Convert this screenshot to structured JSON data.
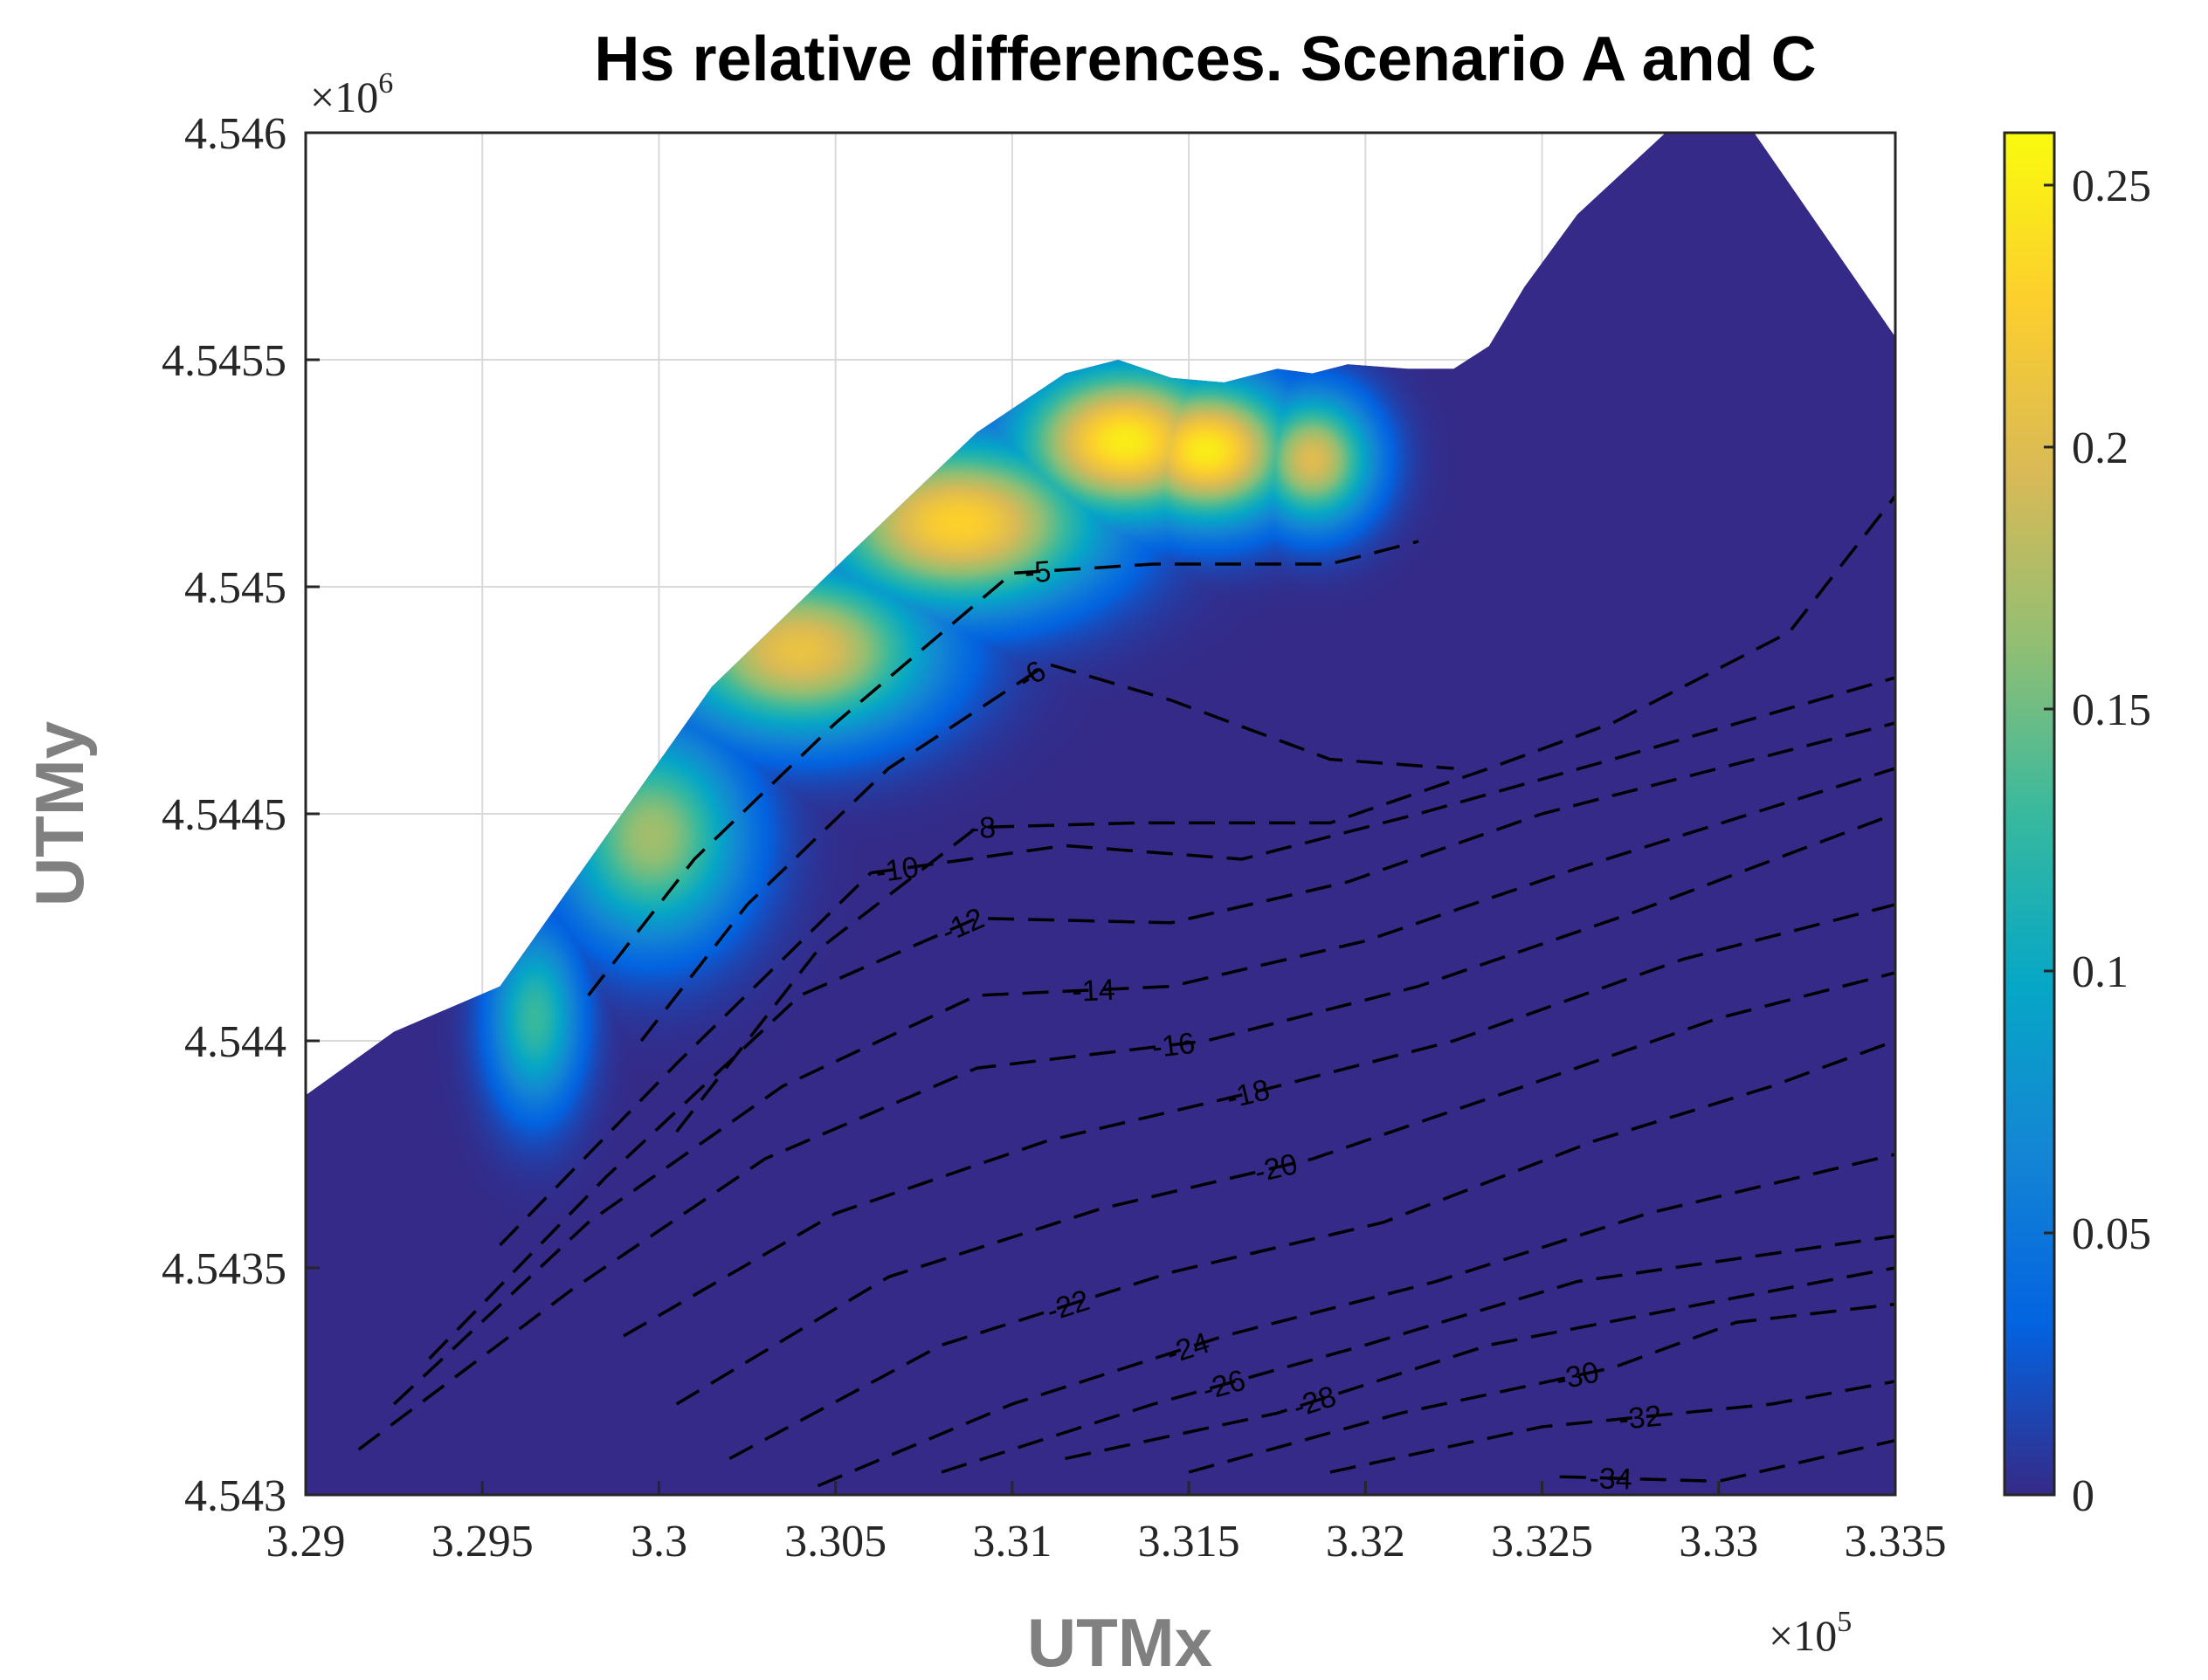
{
  "chart_data": {
    "type": "heatmap",
    "title": "Hs relative differences. Scenario A and C",
    "xlabel": "UTMx",
    "ylabel": "UTMy",
    "x_multiplier": "×10",
    "x_exponent": "5",
    "y_multiplier": "×10",
    "y_exponent": "6",
    "xlim": [
      3.29,
      3.335
    ],
    "ylim": [
      4.543,
      4.546
    ],
    "xticks": [
      "3.29",
      "3.295",
      "3.3",
      "3.305",
      "3.31",
      "3.315",
      "3.32",
      "3.325",
      "3.33",
      "3.335"
    ],
    "yticks": [
      "4.543",
      "4.5435",
      "4.544",
      "4.5445",
      "4.545",
      "4.5455",
      "4.546"
    ],
    "grid": true,
    "colormap": "parula",
    "colormap_colors": [
      "#352a87",
      "#0363e1",
      "#1485d4",
      "#06a7c6",
      "#38b99e",
      "#92bf73",
      "#d9ba56",
      "#fcce2e",
      "#f9fb0e"
    ],
    "clim": [
      0,
      0.26
    ],
    "colorbar_ticks": [
      "0",
      "0.05",
      "0.1",
      "0.15",
      "0.2",
      "0.25"
    ],
    "colorbar_location": "right",
    "coast": [
      [
        3.29,
        4.54388
      ],
      [
        3.2925,
        4.54402
      ],
      [
        3.2955,
        4.54412
      ],
      [
        3.2985,
        4.54445
      ],
      [
        3.3015,
        4.54478
      ],
      [
        3.3055,
        4.54508
      ],
      [
        3.309,
        4.54534
      ],
      [
        3.3115,
        4.54547
      ],
      [
        3.313,
        4.5455
      ],
      [
        3.3145,
        4.54546
      ],
      [
        3.316,
        4.54545
      ],
      [
        3.3175,
        4.54548
      ],
      [
        3.3185,
        4.54547
      ],
      [
        3.3195,
        4.54549
      ],
      [
        3.3212,
        4.54548
      ],
      [
        3.3225,
        4.54548
      ],
      [
        3.3235,
        4.54553
      ],
      [
        3.3245,
        4.54566
      ],
      [
        3.326,
        4.54582
      ],
      [
        3.3285,
        4.546
      ],
      [
        3.331,
        4.546
      ],
      [
        3.335,
        4.54555
      ]
    ],
    "hotspots": [
      {
        "x": 3.3132,
        "y": 4.54532,
        "peak": 0.25,
        "sx": 0.0022,
        "sy": 0.00012
      },
      {
        "x": 3.3155,
        "y": 4.5453,
        "peak": 0.25,
        "sx": 0.0018,
        "sy": 0.00011
      },
      {
        "x": 3.3085,
        "y": 4.54514,
        "peak": 0.23,
        "sx": 0.0028,
        "sy": 0.00013
      },
      {
        "x": 3.3185,
        "y": 4.54528,
        "peak": 0.2,
        "sx": 0.0012,
        "sy": 0.0001
      },
      {
        "x": 3.304,
        "y": 4.54486,
        "peak": 0.21,
        "sx": 0.0026,
        "sy": 0.00013
      },
      {
        "x": 3.2998,
        "y": 4.54445,
        "peak": 0.17,
        "sx": 0.0018,
        "sy": 0.00016
      },
      {
        "x": 3.2965,
        "y": 4.54405,
        "peak": 0.13,
        "sx": 0.0009,
        "sy": 0.00014
      }
    ],
    "contours": [
      {
        "label": "-5",
        "points": [
          [
            3.298,
            4.5441
          ],
          [
            3.301,
            4.5444
          ],
          [
            3.305,
            4.5447
          ],
          [
            3.31,
            4.54503
          ],
          [
            3.314,
            4.54505
          ],
          [
            3.319,
            4.54505
          ],
          [
            3.3215,
            4.5451
          ]
        ],
        "label_at": 0.62
      },
      {
        "label": "-6",
        "points": [
          [
            3.2995,
            4.544
          ],
          [
            3.3025,
            4.5443
          ],
          [
            3.3065,
            4.5446
          ],
          [
            3.311,
            4.54483
          ],
          [
            3.3145,
            4.54475
          ],
          [
            3.319,
            4.54462
          ],
          [
            3.3225,
            4.5446
          ]
        ],
        "label_at": 0.55
      },
      {
        "label": "-8",
        "points": [
          [
            3.3005,
            4.5438
          ],
          [
            3.3045,
            4.5442
          ],
          [
            3.309,
            4.54447
          ],
          [
            3.3135,
            4.54448
          ],
          [
            3.319,
            4.54448
          ],
          [
            3.3235,
            4.5446
          ],
          [
            3.327,
            4.5447
          ],
          [
            3.332,
            4.5449
          ],
          [
            3.335,
            4.5452
          ]
        ],
        "label_at": 0.3
      },
      {
        "label": "-10",
        "points": [
          [
            3.2955,
            4.54355
          ],
          [
            3.3005,
            4.54395
          ],
          [
            3.306,
            4.54437
          ],
          [
            3.3115,
            4.54443
          ],
          [
            3.3165,
            4.5444
          ],
          [
            3.3215,
            4.5445
          ],
          [
            3.327,
            4.54462
          ],
          [
            3.335,
            4.5448
          ]
        ],
        "label_at": 0.35
      },
      {
        "label": "-12",
        "points": [
          [
            3.2935,
            4.5433
          ],
          [
            3.2985,
            4.5437
          ],
          [
            3.304,
            4.5441
          ],
          [
            3.309,
            4.54427
          ],
          [
            3.3145,
            4.54426
          ],
          [
            3.3195,
            4.54435
          ],
          [
            3.325,
            4.5445
          ],
          [
            3.335,
            4.5447
          ]
        ],
        "label_at": 0.42
      },
      {
        "label": "-14",
        "points": [
          [
            3.2925,
            4.5432
          ],
          [
            3.298,
            4.5436
          ],
          [
            3.3035,
            4.5439
          ],
          [
            3.309,
            4.5441
          ],
          [
            3.3145,
            4.54412
          ],
          [
            3.32,
            4.54422
          ],
          [
            3.326,
            4.54438
          ],
          [
            3.335,
            4.5446
          ]
        ],
        "label_at": 0.5
      },
      {
        "label": "-16",
        "points": [
          [
            3.2915,
            4.5431
          ],
          [
            3.2975,
            4.54345
          ],
          [
            3.303,
            4.54374
          ],
          [
            3.309,
            4.54394
          ],
          [
            3.3155,
            4.544
          ],
          [
            3.3215,
            4.54412
          ],
          [
            3.3275,
            4.54428
          ],
          [
            3.335,
            4.5445
          ]
        ],
        "label_at": 0.55
      },
      {
        "label": "-18",
        "points": [
          [
            3.299,
            4.54335
          ],
          [
            3.305,
            4.54362
          ],
          [
            3.311,
            4.54378
          ],
          [
            3.317,
            4.54389
          ],
          [
            3.3225,
            4.544
          ],
          [
            3.329,
            4.54418
          ],
          [
            3.335,
            4.5443
          ]
        ],
        "label_at": 0.5
      },
      {
        "label": "-20",
        "points": [
          [
            3.3005,
            4.5432
          ],
          [
            3.3065,
            4.54348
          ],
          [
            3.3125,
            4.54363
          ],
          [
            3.3185,
            4.54374
          ],
          [
            3.3245,
            4.5439
          ],
          [
            3.33,
            4.54405
          ],
          [
            3.335,
            4.54415
          ]
        ],
        "label_at": 0.5
      },
      {
        "label": "-22",
        "points": [
          [
            3.302,
            4.54308
          ],
          [
            3.308,
            4.54333
          ],
          [
            3.3145,
            4.54349
          ],
          [
            3.3205,
            4.5436
          ],
          [
            3.3265,
            4.54378
          ],
          [
            3.3315,
            4.5439
          ],
          [
            3.335,
            4.544
          ]
        ],
        "label_at": 0.3
      },
      {
        "label": "-24",
        "points": [
          [
            3.3045,
            4.54302
          ],
          [
            3.31,
            4.5432
          ],
          [
            3.316,
            4.54335
          ],
          [
            3.322,
            4.54347
          ],
          [
            3.328,
            4.54362
          ],
          [
            3.335,
            4.54375
          ]
        ],
        "label_at": 0.35
      },
      {
        "label": "-26",
        "points": [
          [
            3.308,
            4.54305
          ],
          [
            3.314,
            4.5432
          ],
          [
            3.32,
            4.54333
          ],
          [
            3.326,
            4.54347
          ],
          [
            3.335,
            4.54357
          ]
        ],
        "label_at": 0.3
      },
      {
        "label": "-28",
        "points": [
          [
            3.3115,
            4.54308
          ],
          [
            3.3175,
            4.54318
          ],
          [
            3.3235,
            4.54333
          ],
          [
            3.3295,
            4.54342
          ],
          [
            3.335,
            4.5435
          ]
        ],
        "label_at": 0.3
      },
      {
        "label": "-30",
        "points": [
          [
            3.315,
            4.54305
          ],
          [
            3.321,
            4.54318
          ],
          [
            3.327,
            4.54328
          ],
          [
            3.3305,
            4.54338
          ],
          [
            3.335,
            4.54342
          ]
        ],
        "label_at": 0.55
      },
      {
        "label": "-32",
        "points": [
          [
            3.319,
            4.54305
          ],
          [
            3.325,
            4.54315
          ],
          [
            3.3315,
            4.5432
          ],
          [
            3.335,
            4.54325
          ]
        ],
        "label_at": 0.55
      },
      {
        "label": "-34",
        "points": [
          [
            3.3255,
            4.54304
          ],
          [
            3.33,
            4.54303
          ],
          [
            3.335,
            4.54312
          ]
        ],
        "label_at": 0.15
      }
    ]
  }
}
